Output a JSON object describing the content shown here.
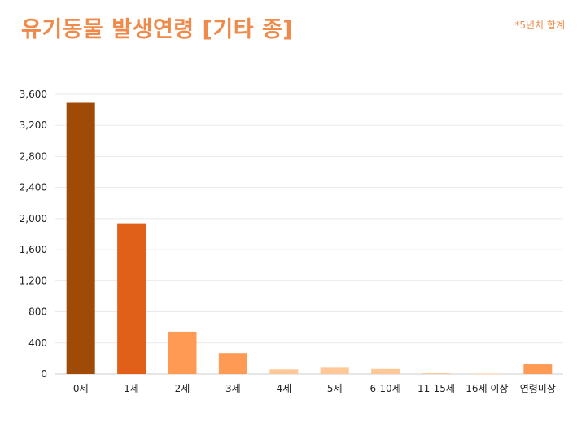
{
  "header": {
    "title": "유기동물 발생연령 [기타 종]",
    "note": "*5년치 합계"
  },
  "chart_data": {
    "type": "bar",
    "title": "유기동물 발생연령 [기타 종]",
    "note": "*5년치 합계",
    "categories": [
      "0세",
      "1세",
      "2세",
      "3세",
      "4세",
      "5세",
      "6-10세",
      "11-15세",
      "16세 이상",
      "연령미상"
    ],
    "values": [
      3490,
      1940,
      545,
      270,
      60,
      80,
      65,
      10,
      3,
      125
    ],
    "colors": [
      "#a04a08",
      "#e0601a",
      "#ff9a55",
      "#ff9a55",
      "#ffc896",
      "#ffc896",
      "#ffc896",
      "#ffc896",
      "#ffc896",
      "#ff9a55"
    ],
    "ylim": [
      0,
      3600
    ],
    "yticks": [
      0,
      400,
      800,
      1200,
      1600,
      2000,
      2400,
      2800,
      3200,
      3600
    ],
    "ytick_labels": [
      "0",
      "400",
      "800",
      "1,200",
      "1,600",
      "2,000",
      "2,400",
      "2,800",
      "3,200",
      "3,600"
    ],
    "grid": true,
    "xlabel": "",
    "ylabel": ""
  }
}
